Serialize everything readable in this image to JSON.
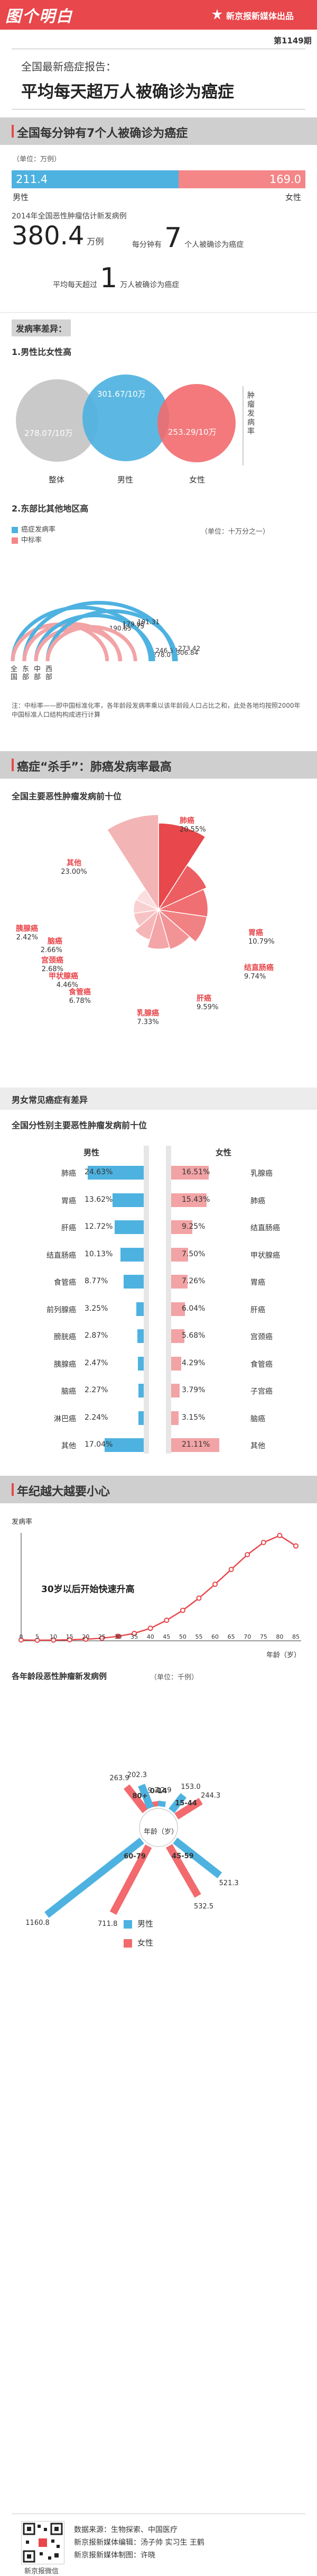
{
  "header": {
    "logo": "图个明白",
    "publisher": "新京报新媒体出品",
    "issue": "第1149期"
  },
  "title": {
    "line1": "全国最新癌症报告：",
    "line2": "平均每天超万人被确诊为癌症"
  },
  "section1": {
    "heading": "全国每分钟有7个人被确诊为癌症",
    "unit": "（单位：万例）",
    "male_value": "211.4",
    "female_value": "169.0",
    "male_label": "男性",
    "female_label": "女性",
    "year_text": "2014年全国恶性肿瘤估计新发病例",
    "total": "380.4",
    "total_unit": "万例",
    "per_minute_pre": "每分钟有",
    "per_minute_num": "7",
    "per_minute_post": "个人被确诊为癌症",
    "per_day_pre": "平均每天超过",
    "per_day_num": "1",
    "per_day_post": "万人被确诊为癌症"
  },
  "section2": {
    "heading": "发病率差异：",
    "sub1": "1.男性比女性高",
    "circle_overall": "278.07/10万",
    "circle_male": "301.67/10万",
    "circle_female": "253.29/10万",
    "label_overall": "整体",
    "label_male": "男性",
    "label_female": "女性",
    "side_label": "肿瘤发病率",
    "sub2": "2.东部比其他地区高",
    "legend_crude": "癌症发病率",
    "legend_std": "中标率",
    "unit": "（单位：十万分之一）",
    "regions": [
      "全国",
      "东部",
      "中部",
      "西部"
    ],
    "note": "注：中标率——即中国标准化率，各年龄段发病率乘以该年龄段人口占比之和，此处各地均按照2000年中国标准人口结构构成进行计算"
  },
  "section3": {
    "heading": "癌症“杀手”：肺癌发病率最高",
    "sub": "全国主要恶性肿瘤发病前十位"
  },
  "section4": {
    "heading": "男女常见癌症有差异",
    "sub": "全国分性别主要恶性肿瘤发病前十位",
    "col_male": "男性",
    "col_female": "女性"
  },
  "section5": {
    "heading": "年纪越大越要小心",
    "ylabel": "发病率",
    "xlabel": "年龄（岁）",
    "annotation": "30岁以后开始快速升高"
  },
  "section6": {
    "sub": "各年龄段恶性肿瘤新发病例",
    "unit": "（单位：千例）",
    "center_label": "年龄（岁）",
    "legend_male": "男性",
    "legend_female": "女性"
  },
  "footer": {
    "source": "数据来源：生物探索、中国医疗",
    "editor": "新京报新媒体编辑：汤子帅  实习生 王鹤",
    "designer": "新京报新媒体制图：许晓",
    "qr_label": "新京报微信"
  },
  "colors": {
    "red": "#e8474b",
    "blue": "#4eb2e0",
    "gray": "#c9c9c9",
    "pink": "#f2a3a5"
  },
  "chart_data": [
    {
      "type": "bar",
      "title": "全国每分钟有7个人被确诊为癌症",
      "categories": [
        "男性",
        "女性"
      ],
      "values": [
        211.4,
        169.0
      ],
      "unit": "万例"
    },
    {
      "type": "bar",
      "title": "1.男性比女性高",
      "categories": [
        "整体",
        "男性",
        "女性"
      ],
      "values": [
        278.07,
        301.67,
        253.29
      ],
      "unit": "/10万"
    },
    {
      "type": "bar",
      "title": "2.东部比其他地区高",
      "categories": [
        "全国",
        "东部",
        "中部",
        "西部"
      ],
      "series": [
        {
          "name": "癌症发病率",
          "values": [
            278.07,
            306.84,
            246.38,
            273.42
          ]
        },
        {
          "name": "中标率",
          "values": [
            190.63,
            197.75,
            179.85,
            191.31
          ]
        }
      ],
      "unit": "十万分之一"
    },
    {
      "type": "pie",
      "title": "全国主要恶性肿瘤发病前十位",
      "categories": [
        "肺癌",
        "胃癌",
        "结直肠癌",
        "肝癌",
        "乳腺癌",
        "食管癌",
        "甲状腺癌",
        "宫颈癌",
        "脑癌",
        "胰腺癌",
        "其他"
      ],
      "values": [
        20.55,
        10.79,
        9.74,
        9.59,
        7.33,
        6.78,
        4.46,
        2.68,
        2.66,
        2.42,
        23.0
      ],
      "value_labels": [
        "20.55%",
        "10.79%",
        "9.74%",
        "9.59%",
        "7.33%",
        "6.78%",
        "4.46%",
        "2.68%",
        "2.66%",
        "2.42%",
        "23.00%"
      ]
    },
    {
      "type": "bar",
      "title": "全国分性别主要恶性肿瘤发病前十位",
      "series": [
        {
          "name": "男性",
          "categories": [
            "肺癌",
            "胃癌",
            "肝癌",
            "结直肠癌",
            "食管癌",
            "前列腺癌",
            "膀胱癌",
            "胰腺癌",
            "脑癌",
            "淋巴癌",
            "其他"
          ],
          "values": [
            24.63,
            13.62,
            12.72,
            10.13,
            8.77,
            3.25,
            2.87,
            2.47,
            2.27,
            2.24,
            17.04
          ],
          "value_labels": [
            "24.63%",
            "13.62%",
            "12.72%",
            "10.13%",
            "8.77%",
            "3.25%",
            "2.87%",
            "2.47%",
            "2.27%",
            "2.24%",
            "17.04%"
          ]
        },
        {
          "name": "女性",
          "categories": [
            "乳腺癌",
            "肺癌",
            "结直肠癌",
            "甲状腺癌",
            "胃癌",
            "肝癌",
            "宫颈癌",
            "食管癌",
            "子宫癌",
            "脑癌",
            "其他"
          ],
          "values": [
            16.51,
            15.43,
            9.25,
            7.5,
            7.26,
            6.04,
            5.68,
            4.29,
            3.79,
            3.15,
            21.11
          ],
          "value_labels": [
            "16.51%",
            "15.43%",
            "9.25%",
            "7.50%",
            "7.26%",
            "6.04%",
            "5.68%",
            "4.29%",
            "3.79%",
            "3.15%",
            "21.11%"
          ]
        }
      ]
    },
    {
      "type": "line",
      "title": "年纪越大越要小心",
      "xlabel": "年龄（岁）",
      "ylabel": "发病率",
      "x": [
        0,
        5,
        10,
        15,
        20,
        25,
        30,
        35,
        40,
        45,
        50,
        55,
        60,
        65,
        70,
        75,
        80,
        85
      ],
      "x_labels": [
        "0",
        "5",
        "10",
        "15",
        "20",
        "25",
        "30",
        "35",
        "40",
        "45",
        "50",
        "55",
        "60",
        "65",
        "70",
        "75",
        "80",
        "85"
      ],
      "values": [
        0.5,
        0.35,
        0.4,
        0.6,
        0.9,
        1.5,
        2.6,
        4.3,
        7.2,
        11.8,
        17.5,
        24.5,
        32.5,
        41.0,
        49.5,
        56.5,
        60.5,
        54.5
      ]
    },
    {
      "type": "bar",
      "title": "各年龄段恶性肿瘤新发病例",
      "unit": "千例",
      "categories": [
        "0-14",
        "15-44",
        "45-59",
        "60-79",
        "80+"
      ],
      "series": [
        {
          "name": "男性",
          "values": [
            12.9,
            153.0,
            521.3,
            1160.8,
            202.3
          ]
        },
        {
          "name": "女性",
          "values": [
            9.3,
            244.3,
            532.5,
            711.8,
            263.9
          ]
        }
      ],
      "value_labels": {
        "男性": [
          "12.9",
          "153.0",
          "521.3",
          "1160.8",
          "202.3"
        ],
        "女性": [
          "9.3",
          "244.3",
          "532.5",
          "711.8",
          "263.9"
        ]
      }
    }
  ]
}
